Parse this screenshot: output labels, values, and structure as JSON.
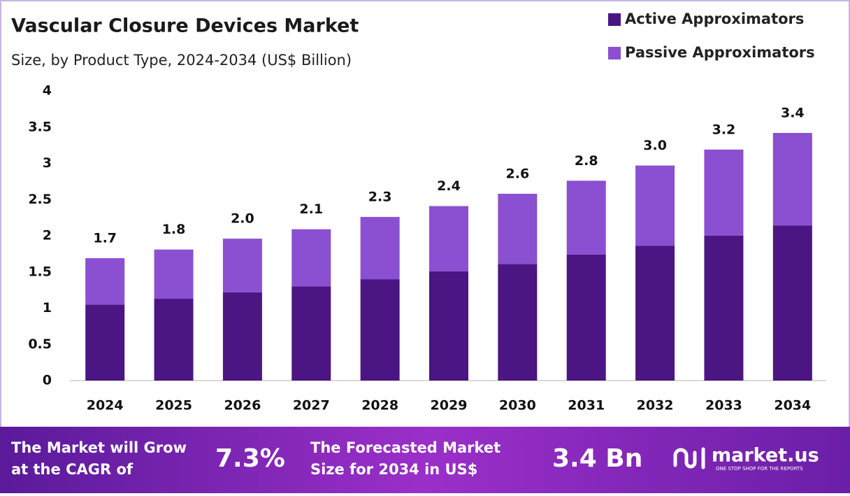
{
  "chart_data": {
    "type": "stacked-bar",
    "title": "Vascular Closure Devices Market",
    "subtitle": "Size, by Product Type, 2024-2034 (US$ Billion)",
    "categories": [
      "2024",
      "2025",
      "2026",
      "2027",
      "2028",
      "2029",
      "2030",
      "2031",
      "2032",
      "2033",
      "2034"
    ],
    "series": [
      {
        "name": "Active Approximators",
        "color": "#4b1583",
        "values": [
          1.05,
          1.13,
          1.22,
          1.3,
          1.4,
          1.51,
          1.61,
          1.74,
          1.86,
          2.0,
          2.14
        ]
      },
      {
        "name": "Passive Approximators",
        "color": "#8b4fd1",
        "values": [
          0.64,
          0.68,
          0.74,
          0.79,
          0.86,
          0.9,
          0.97,
          1.02,
          1.11,
          1.19,
          1.28
        ]
      }
    ],
    "total_labels": [
      "1.7",
      "1.8",
      "2.0",
      "2.1",
      "2.3",
      "2.4",
      "2.6",
      "2.8",
      "3.0",
      "3.2",
      "3.4"
    ],
    "ylim": [
      0,
      4
    ],
    "yticks": [
      0,
      0.5,
      1,
      1.5,
      2,
      2.5,
      3,
      3.5,
      4
    ],
    "grid": false,
    "legend": "top-right"
  },
  "footer": {
    "cagr_text": "The Market will Grow at the CAGR of",
    "cagr_value": "7.3%",
    "forecast_text": "The Forecasted Market Size for 2034 in US$",
    "forecast_value": "3.4 Bn",
    "brand": "market.us",
    "tagline": "ONE STOP SHOP FOR THE REPORTS"
  }
}
